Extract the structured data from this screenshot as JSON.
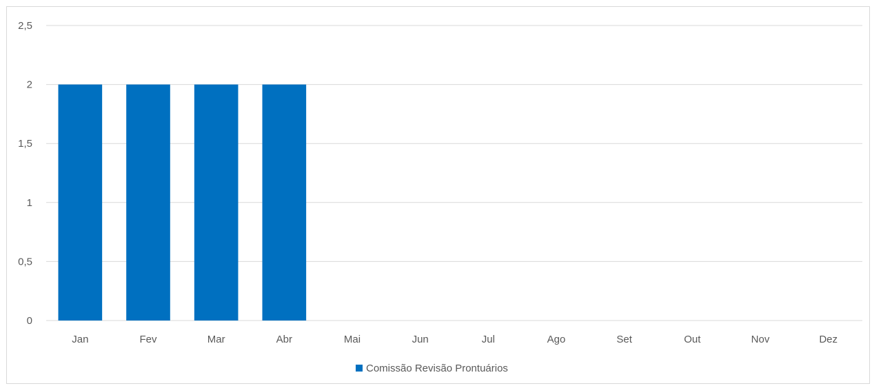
{
  "chart_data": {
    "type": "bar",
    "title": "",
    "xlabel": "",
    "ylabel": "",
    "categories": [
      "Jan",
      "Fev",
      "Mar",
      "Abr",
      "Mai",
      "Jun",
      "Jul",
      "Ago",
      "Set",
      "Out",
      "Nov",
      "Dez"
    ],
    "series": [
      {
        "name": "Comissão Revisão Prontuários",
        "values": [
          2,
          2,
          2,
          2,
          null,
          null,
          null,
          null,
          null,
          null,
          null,
          null
        ],
        "color": "#0070c0"
      }
    ],
    "ylim": [
      0,
      2.5
    ],
    "yticks": [
      "0",
      "0,5",
      "1",
      "1,5",
      "2",
      "2,5"
    ],
    "ytick_values": [
      0,
      0.5,
      1,
      1.5,
      2,
      2.5
    ],
    "grid": true,
    "legend_position": "bottom"
  }
}
